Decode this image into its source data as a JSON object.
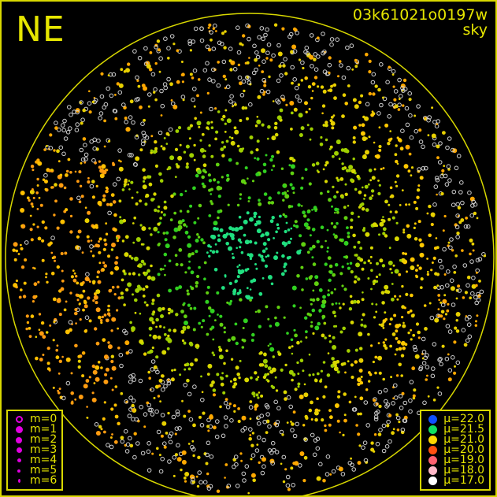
{
  "direction_label": "NE",
  "title": {
    "id": "03k61021o0197w",
    "type": "sky"
  },
  "colors": {
    "frame": "#d8d800",
    "text": "#e6e600"
  },
  "magnitude_legend": [
    {
      "label": "m=0",
      "color": "#e000e0"
    },
    {
      "label": "m=1",
      "color": "#e000e0"
    },
    {
      "label": "m=2",
      "color": "#e000e0"
    },
    {
      "label": "m=3",
      "color": "#e000e0"
    },
    {
      "label": "m=4",
      "color": "#e000e0"
    },
    {
      "label": "m=5",
      "color": "#e000e0"
    },
    {
      "label": "m=6",
      "color": "#e000e0"
    }
  ],
  "brightness_legend": [
    {
      "label": "μ=22.0",
      "color": "#1050ff"
    },
    {
      "label": "μ=21.5",
      "color": "#10e060"
    },
    {
      "label": "μ=21.0",
      "color": "#ffd800"
    },
    {
      "label": "μ=20.0",
      "color": "#ff5010"
    },
    {
      "label": "μ=19.0",
      "color": "#ff6070"
    },
    {
      "label": "μ=18.0",
      "color": "#ffb8c8"
    },
    {
      "label": "μ=17.0",
      "color": "#ffffff"
    }
  ]
}
